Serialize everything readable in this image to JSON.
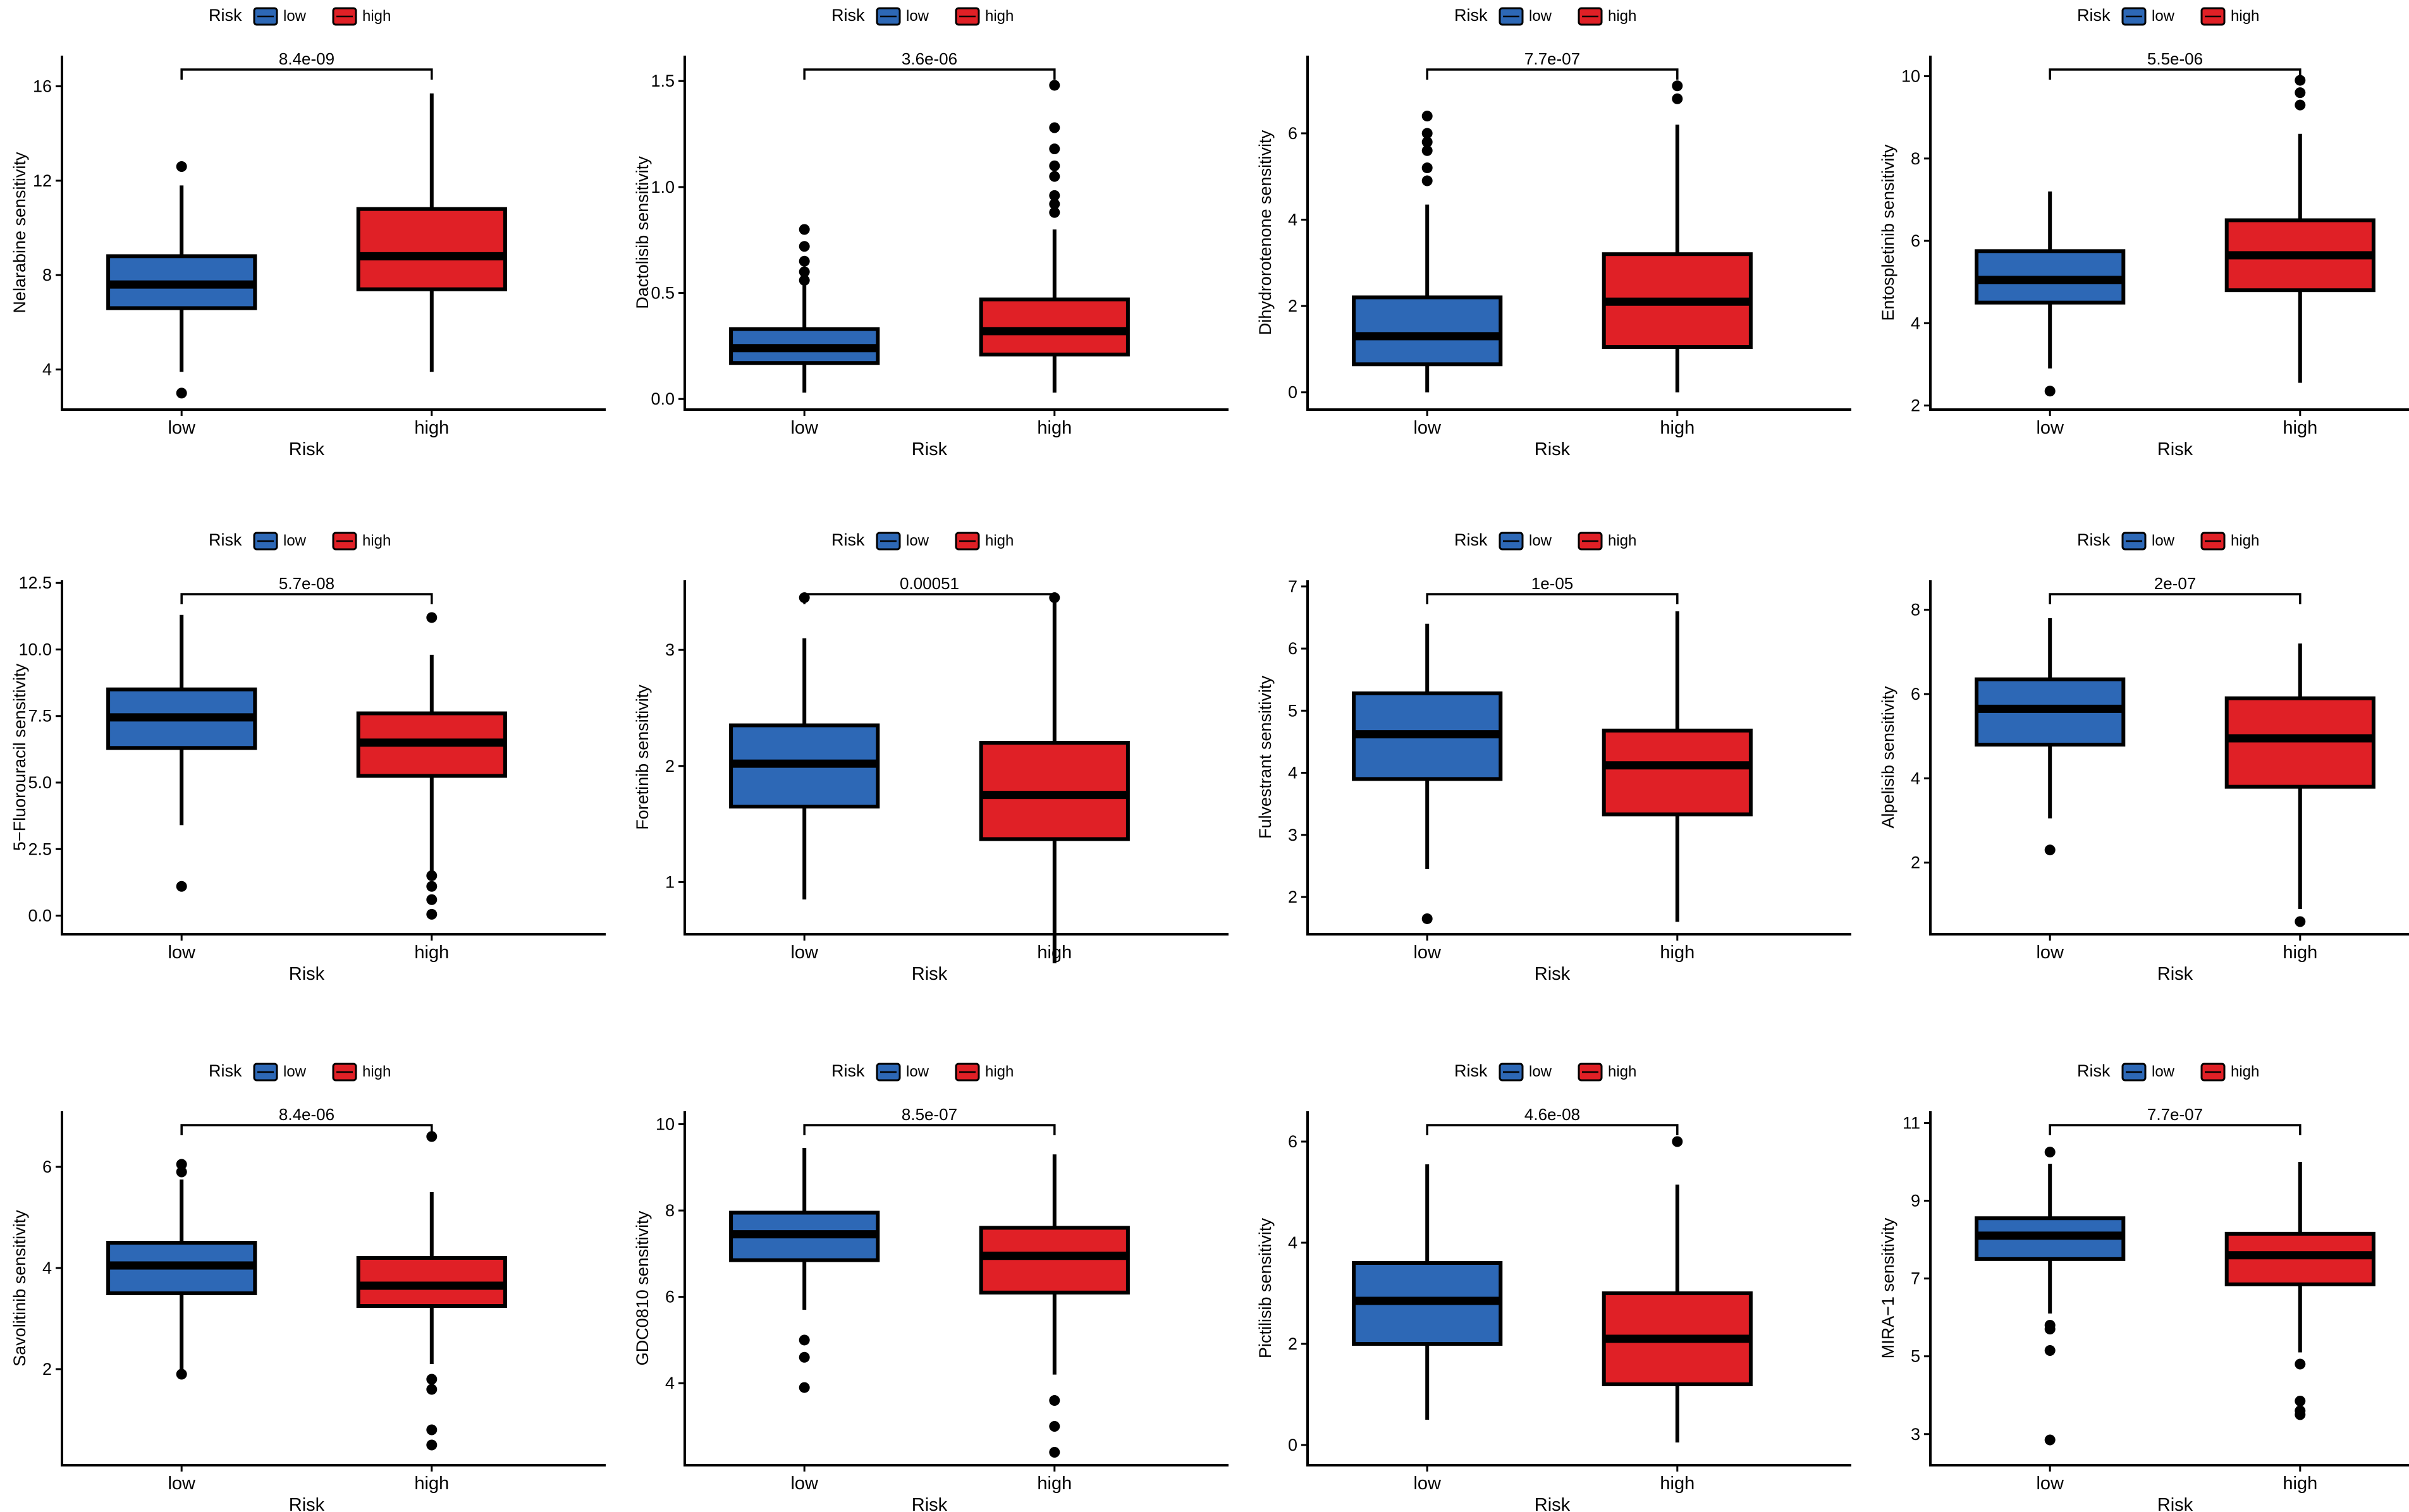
{
  "figure": {
    "colors": {
      "low": "#2d68b6",
      "high": "#e02026",
      "stroke": "#000000"
    },
    "legend": {
      "title": "Risk",
      "items": [
        "low",
        "high"
      ]
    }
  },
  "chart_data": [
    {
      "type": "box",
      "title": "",
      "xlabel": "Risk",
      "ylabel": "Nelarabine sensitivity",
      "categories": [
        "low",
        "high"
      ],
      "yticks": [
        4,
        8,
        12,
        16
      ],
      "ylim": [
        2.3,
        17.3
      ],
      "pvalue": "8.4e-09",
      "series": [
        {
          "name": "low",
          "q1": 6.6,
          "median": 7.6,
          "q3": 8.8,
          "whisker_low": 3.9,
          "whisker_high": 11.8,
          "outliers": [
            12.6,
            3.0
          ]
        },
        {
          "name": "high",
          "q1": 7.4,
          "median": 8.8,
          "q3": 10.8,
          "whisker_low": 3.9,
          "whisker_high": 15.7,
          "outliers": []
        }
      ]
    },
    {
      "type": "box",
      "title": "",
      "xlabel": "Risk",
      "ylabel": "Dactolisib sensitivity",
      "categories": [
        "low",
        "high"
      ],
      "yticks": [
        0.0,
        0.5,
        1.0,
        1.5
      ],
      "ylim": [
        -0.05,
        1.62
      ],
      "pvalue": "3.6e-06",
      "series": [
        {
          "name": "low",
          "q1": 0.17,
          "median": 0.24,
          "q3": 0.33,
          "whisker_low": 0.03,
          "whisker_high": 0.54,
          "outliers": [
            0.8,
            0.72,
            0.65,
            0.6,
            0.56
          ]
        },
        {
          "name": "high",
          "q1": 0.21,
          "median": 0.32,
          "q3": 0.47,
          "whisker_low": 0.03,
          "whisker_high": 0.8,
          "outliers": [
            1.48,
            1.28,
            1.18,
            1.1,
            1.05,
            0.96,
            0.92,
            0.88
          ]
        }
      ]
    },
    {
      "type": "box",
      "title": "",
      "xlabel": "Risk",
      "ylabel": "Dihydrorotenone sensitivity",
      "categories": [
        "low",
        "high"
      ],
      "yticks": [
        0,
        2,
        4,
        6
      ],
      "ylim": [
        -0.4,
        7.8
      ],
      "pvalue": "7.7e-07",
      "series": [
        {
          "name": "low",
          "q1": 0.65,
          "median": 1.3,
          "q3": 2.2,
          "whisker_low": 0.0,
          "whisker_high": 4.35,
          "outliers": [
            6.4,
            6.0,
            5.8,
            5.6,
            5.2,
            4.9
          ]
        },
        {
          "name": "high",
          "q1": 1.05,
          "median": 2.1,
          "q3": 3.2,
          "whisker_low": 0.0,
          "whisker_high": 6.2,
          "outliers": [
            7.1,
            6.8
          ]
        }
      ]
    },
    {
      "type": "box",
      "title": "",
      "xlabel": "Risk",
      "ylabel": "Entospletinib sensitivity",
      "categories": [
        "low",
        "high"
      ],
      "yticks": [
        2,
        4,
        6,
        8,
        10
      ],
      "ylim": [
        1.9,
        10.5
      ],
      "pvalue": "5.5e-06",
      "series": [
        {
          "name": "low",
          "q1": 4.5,
          "median": 5.05,
          "q3": 5.75,
          "whisker_low": 2.9,
          "whisker_high": 7.2,
          "outliers": [
            2.35
          ]
        },
        {
          "name": "high",
          "q1": 4.8,
          "median": 5.65,
          "q3": 6.5,
          "whisker_low": 2.55,
          "whisker_high": 8.6,
          "outliers": [
            9.9,
            9.6,
            9.3
          ]
        }
      ]
    },
    {
      "type": "box",
      "title": "",
      "xlabel": "Risk",
      "ylabel": "5−Fluorouracil sensitivity",
      "categories": [
        "low",
        "high"
      ],
      "yticks": [
        0.0,
        2.5,
        5.0,
        7.5,
        10.0,
        12.5
      ],
      "ylim": [
        -0.7,
        12.6
      ],
      "pvalue": "5.7e-08",
      "series": [
        {
          "name": "low",
          "q1": 6.3,
          "median": 7.45,
          "q3": 8.5,
          "whisker_low": 3.4,
          "whisker_high": 11.3,
          "outliers": [
            1.1
          ]
        },
        {
          "name": "high",
          "q1": 5.25,
          "median": 6.5,
          "q3": 7.6,
          "whisker_low": 1.6,
          "whisker_high": 9.8,
          "outliers": [
            11.2,
            1.5,
            1.1,
            0.6,
            0.05
          ]
        }
      ]
    },
    {
      "type": "box",
      "title": "",
      "xlabel": "Risk",
      "ylabel": "Foretinib sensitivity",
      "categories": [
        "low",
        "high"
      ],
      "yticks": [
        1,
        2,
        3
      ],
      "ylim": [
        0.55,
        3.6
      ],
      "pvalue": "0.00051",
      "series": [
        {
          "name": "low",
          "q1": 1.65,
          "median": 2.02,
          "q3": 2.35,
          "whisker_low": 0.85,
          "whisker_high": 3.1,
          "outliers": [
            3.45
          ]
        },
        {
          "name": "high",
          "q1": 1.37,
          "median": 1.75,
          "q3": 2.2,
          "whisker_low": 0.3,
          "whisker_high": 3.45,
          "outliers": [
            3.45
          ]
        }
      ]
    },
    {
      "type": "box",
      "title": "",
      "xlabel": "Risk",
      "ylabel": "Fulvestrant sensitivity",
      "categories": [
        "low",
        "high"
      ],
      "yticks": [
        2,
        3,
        4,
        5,
        6,
        7
      ],
      "ylim": [
        1.4,
        7.1
      ],
      "pvalue": "1e-05",
      "series": [
        {
          "name": "low",
          "q1": 3.9,
          "median": 4.62,
          "q3": 5.28,
          "whisker_low": 2.45,
          "whisker_high": 6.4,
          "outliers": [
            1.65
          ]
        },
        {
          "name": "high",
          "q1": 3.33,
          "median": 4.12,
          "q3": 4.68,
          "whisker_low": 1.6,
          "whisker_high": 6.6,
          "outliers": []
        }
      ]
    },
    {
      "type": "box",
      "title": "",
      "xlabel": "Risk",
      "ylabel": "Alpelisib sensitivity",
      "categories": [
        "low",
        "high"
      ],
      "yticks": [
        2,
        4,
        6,
        8
      ],
      "ylim": [
        0.3,
        8.7
      ],
      "pvalue": "2e-07",
      "series": [
        {
          "name": "low",
          "q1": 4.8,
          "median": 5.65,
          "q3": 6.35,
          "whisker_low": 3.05,
          "whisker_high": 7.8,
          "outliers": [
            2.3
          ]
        },
        {
          "name": "high",
          "q1": 3.8,
          "median": 4.95,
          "q3": 5.9,
          "whisker_low": 0.9,
          "whisker_high": 7.2,
          "outliers": [
            0.6
          ]
        }
      ]
    },
    {
      "type": "box",
      "title": "",
      "xlabel": "Risk",
      "ylabel": "Savolitinib sensitivity",
      "categories": [
        "low",
        "high"
      ],
      "yticks": [
        2,
        4,
        6
      ],
      "ylim": [
        0.1,
        7.1
      ],
      "pvalue": "8.4e-06",
      "series": [
        {
          "name": "low",
          "q1": 3.5,
          "median": 4.05,
          "q3": 4.5,
          "whisker_low": 2.0,
          "whisker_high": 5.75,
          "outliers": [
            6.05,
            5.9,
            1.9
          ]
        },
        {
          "name": "high",
          "q1": 3.25,
          "median": 3.65,
          "q3": 4.2,
          "whisker_low": 2.1,
          "whisker_high": 5.5,
          "outliers": [
            6.6,
            1.8,
            1.6,
            0.8,
            0.5
          ]
        }
      ]
    },
    {
      "type": "box",
      "title": "",
      "xlabel": "Risk",
      "ylabel": "GDC0810 sensitivity",
      "categories": [
        "low",
        "high"
      ],
      "yticks": [
        4,
        6,
        8,
        10
      ],
      "ylim": [
        2.1,
        10.3
      ],
      "pvalue": "8.5e-07",
      "series": [
        {
          "name": "low",
          "q1": 6.85,
          "median": 7.45,
          "q3": 7.95,
          "whisker_low": 5.7,
          "whisker_high": 9.45,
          "outliers": [
            5.0,
            4.6,
            3.9
          ]
        },
        {
          "name": "high",
          "q1": 6.1,
          "median": 6.95,
          "q3": 7.6,
          "whisker_low": 4.2,
          "whisker_high": 9.3,
          "outliers": [
            3.6,
            3.0,
            2.4
          ]
        }
      ]
    },
    {
      "type": "box",
      "title": "",
      "xlabel": "Risk",
      "ylabel": "Pictilisib sensitivity",
      "categories": [
        "low",
        "high"
      ],
      "yticks": [
        0,
        2,
        4,
        6
      ],
      "ylim": [
        -0.4,
        6.6
      ],
      "pvalue": "4.6e-08",
      "series": [
        {
          "name": "low",
          "q1": 2.0,
          "median": 2.85,
          "q3": 3.6,
          "whisker_low": 0.5,
          "whisker_high": 5.55,
          "outliers": []
        },
        {
          "name": "high",
          "q1": 1.2,
          "median": 2.1,
          "q3": 3.0,
          "whisker_low": 0.05,
          "whisker_high": 5.15,
          "outliers": [
            6.0
          ]
        }
      ]
    },
    {
      "type": "box",
      "title": "",
      "xlabel": "Risk",
      "ylabel": "MIRA−1 sensitivity",
      "categories": [
        "low",
        "high"
      ],
      "yticks": [
        3,
        5,
        7,
        9,
        11
      ],
      "ylim": [
        2.2,
        11.3
      ],
      "pvalue": "7.7e-07",
      "series": [
        {
          "name": "low",
          "q1": 7.5,
          "median": 8.1,
          "q3": 8.55,
          "whisker_low": 6.1,
          "whisker_high": 9.95,
          "outliers": [
            10.25,
            5.8,
            5.7,
            5.15,
            2.85
          ]
        },
        {
          "name": "high",
          "q1": 6.85,
          "median": 7.6,
          "q3": 8.15,
          "whisker_low": 5.1,
          "whisker_high": 10.0,
          "outliers": [
            4.8,
            3.85,
            3.6,
            3.5
          ]
        }
      ]
    }
  ]
}
